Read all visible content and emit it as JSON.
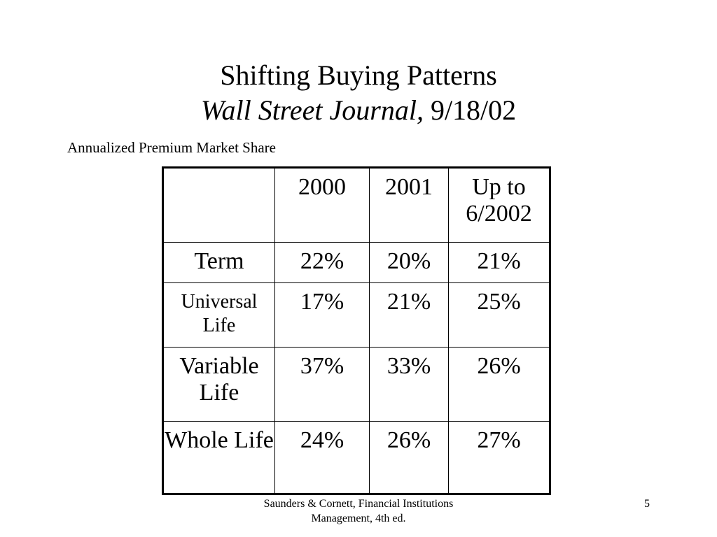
{
  "slide": {
    "title_line1": "Shifting Buying Patterns",
    "title_source_italic": "Wall Street Journal,",
    "title_date": "9/18/02",
    "caption": "Annualized Premium Market Share"
  },
  "table": {
    "headers": [
      "",
      "2000",
      "2001",
      "Up to 6/2002"
    ],
    "rows": [
      {
        "label": "Term",
        "values": [
          "22%",
          "20%",
          "21%"
        ]
      },
      {
        "label": "Universal Life",
        "values": [
          "17%",
          "21%",
          "25%"
        ]
      },
      {
        "label": "Variable Life",
        "values": [
          "37%",
          "33%",
          "26%"
        ]
      },
      {
        "label": "Whole Life",
        "values": [
          "24%",
          "26%",
          "27%"
        ]
      }
    ]
  },
  "footer": {
    "citation": "Saunders & Cornett, Financial Institutions Management, 4th ed.",
    "page_number": "5"
  }
}
